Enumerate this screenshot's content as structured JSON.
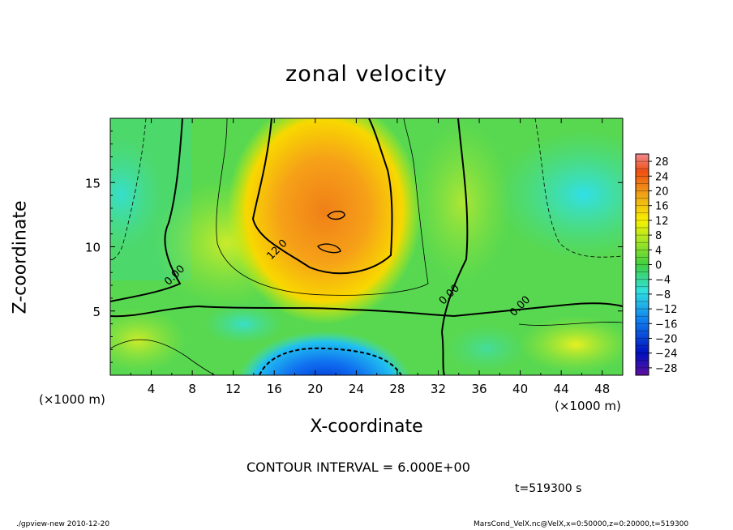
{
  "chart_data": {
    "type": "heatmap",
    "title": "zonal velocity",
    "xlabel": "X-coordinate",
    "ylabel": "Z-coordinate",
    "x_unit": "(×1000 m)",
    "xlim": [
      0,
      50
    ],
    "ylim": [
      0,
      20
    ],
    "x_ticks": [
      4,
      8,
      12,
      16,
      20,
      24,
      28,
      32,
      36,
      40,
      44,
      48
    ],
    "y_ticks": [
      5,
      10,
      15
    ],
    "colorbar_ticks": [
      28,
      24,
      20,
      16,
      12,
      8,
      4,
      0,
      -4,
      -8,
      -12,
      -16,
      -20,
      -24,
      -28
    ],
    "colorbar_range": [
      -30,
      30
    ],
    "contour_labels": [
      {
        "text": "12.0",
        "x": 16.5,
        "z": 9.6
      },
      {
        "text": "0.00",
        "x": 6.5,
        "z": 7.6
      },
      {
        "text": "0.00",
        "x": 33.3,
        "z": 6.1
      },
      {
        "text": "0.00",
        "x": 40.2,
        "z": 5.2
      }
    ],
    "contour_interval": "CONTOUR INTERVAL = 6.000E+00",
    "grid": false
  },
  "time_label": "t=519300 s",
  "footer_left": "./gpview-new  2010-12-20",
  "footer_right": "MarsCond_VelX.nc@VelX,x=0:50000,z=0:20000,t=519300",
  "colors": {
    "positive_max": "#f07880",
    "high": "#f08018",
    "mid_high": "#f8f000",
    "zero": "#40d040",
    "low": "#30e0e0",
    "negative": "#0030d8",
    "negative_min": "#6010a0"
  }
}
